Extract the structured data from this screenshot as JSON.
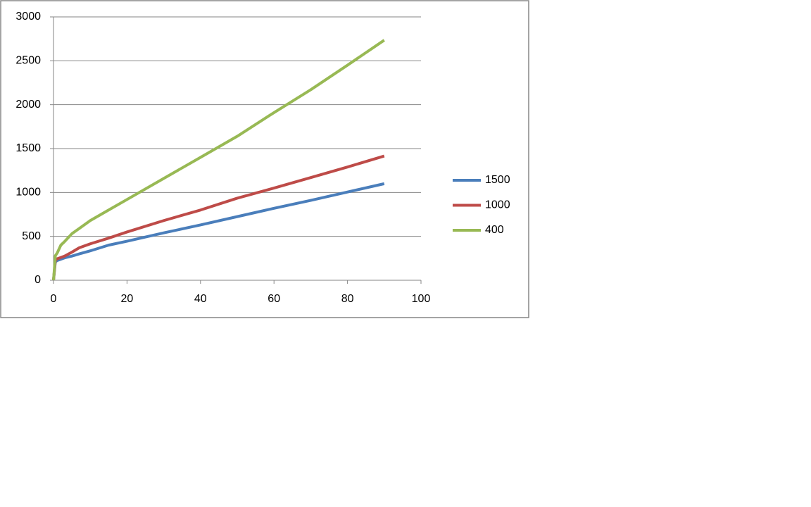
{
  "chart_data": {
    "type": "line",
    "x": [
      0,
      0.5,
      1,
      2,
      3,
      5,
      7,
      10,
      15,
      20,
      30,
      40,
      50,
      60,
      70,
      80,
      90
    ],
    "series": [
      {
        "name": "1500",
        "color": "#4a7ebb",
        "values": [
          0,
          210,
          225,
          240,
          255,
          275,
          300,
          335,
          400,
          445,
          540,
          630,
          725,
          820,
          910,
          1005,
          1100
        ]
      },
      {
        "name": "1000",
        "color": "#be4b48",
        "values": [
          0,
          230,
          245,
          260,
          275,
          320,
          370,
          415,
          480,
          550,
          680,
          800,
          935,
          1050,
          1170,
          1290,
          1415
        ]
      },
      {
        "name": "400",
        "color": "#98b954",
        "values": [
          0,
          280,
          310,
          400,
          440,
          530,
          590,
          680,
          800,
          920,
          1160,
          1400,
          1640,
          1910,
          2170,
          2450,
          2735
        ]
      }
    ],
    "xlim": [
      0,
      100
    ],
    "xticks": [
      0,
      20,
      40,
      60,
      80,
      100
    ],
    "ylim": [
      0,
      3000
    ],
    "yticks": [
      0,
      500,
      1000,
      1500,
      2000,
      2500,
      3000
    ],
    "grid": true,
    "legend": "right"
  }
}
